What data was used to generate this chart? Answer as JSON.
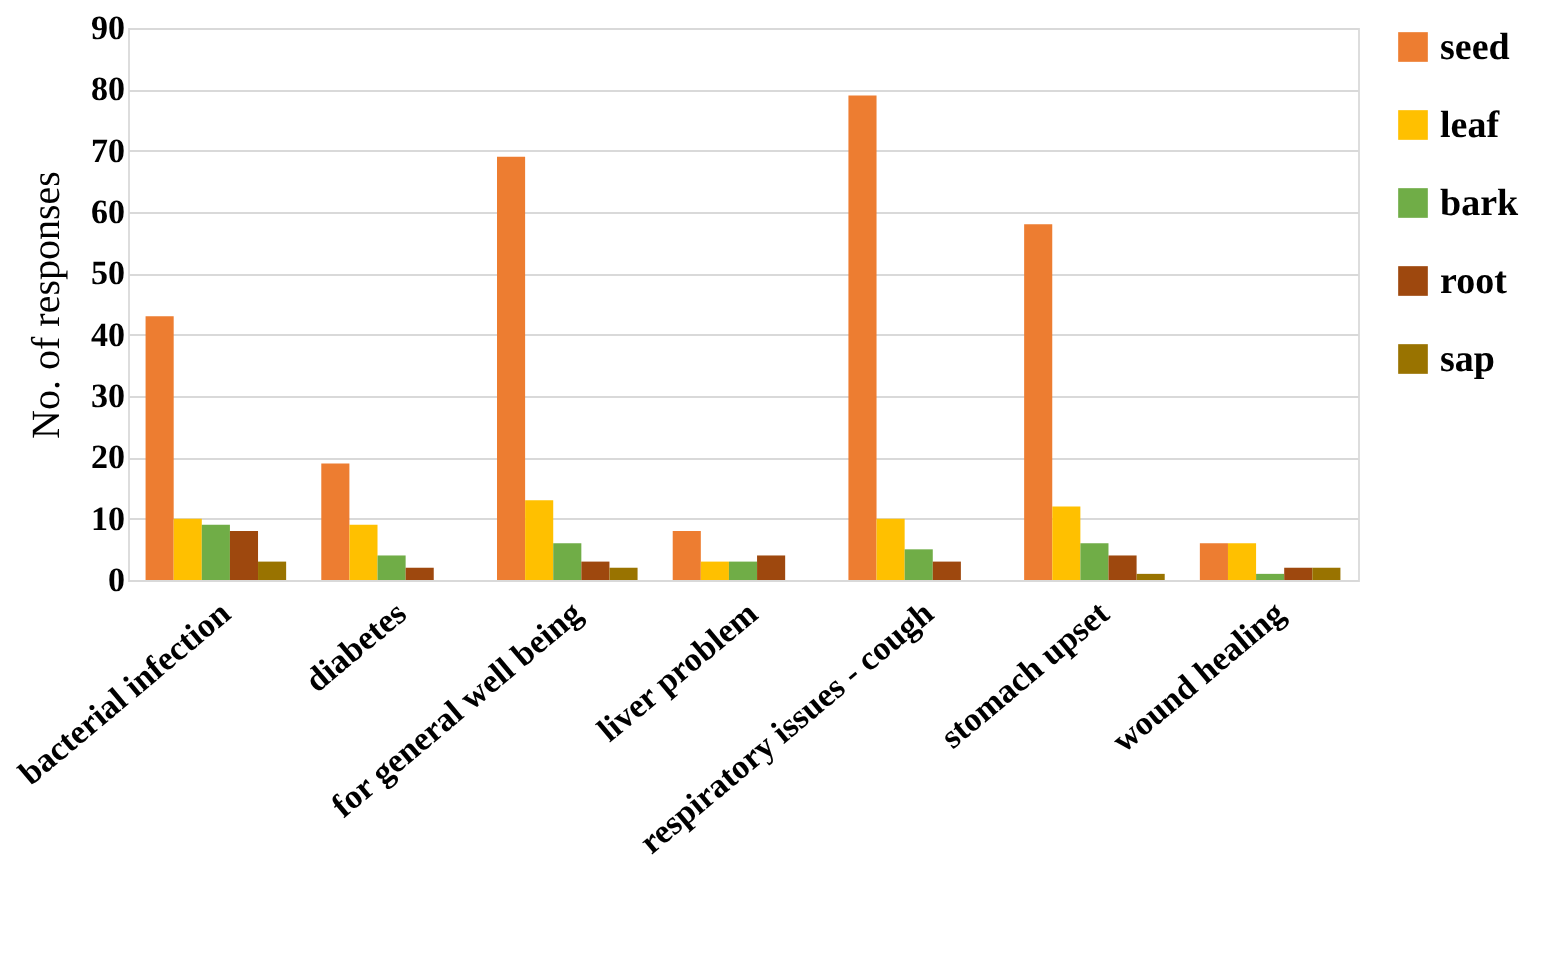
{
  "chart_data": {
    "type": "bar",
    "ylabel": "No. of responses",
    "categories": [
      "bacterial infection",
      "diabetes",
      "for general well being",
      "liver problem",
      "respiratory issues - cough",
      "stomach upset",
      "wound healing"
    ],
    "series": [
      {
        "name": "seed",
        "color": "#ed7d31",
        "values": [
          43,
          19,
          69,
          8,
          79,
          58,
          6
        ]
      },
      {
        "name": "leaf",
        "color": "#ffc000",
        "values": [
          10,
          9,
          13,
          3,
          10,
          12,
          6
        ]
      },
      {
        "name": "bark",
        "color": "#70ad47",
        "values": [
          9,
          4,
          6,
          3,
          5,
          6,
          1
        ]
      },
      {
        "name": "root",
        "color": "#9e480e",
        "values": [
          8,
          2,
          3,
          4,
          3,
          4,
          2
        ]
      },
      {
        "name": "sap",
        "color": "#997300",
        "values": [
          3,
          0,
          2,
          0,
          0,
          1,
          2
        ]
      }
    ],
    "ylim": [
      0,
      90
    ],
    "yticks": [
      0,
      10,
      20,
      30,
      40,
      50,
      60,
      70,
      80,
      90
    ],
    "grid": "y",
    "legend": "right"
  }
}
